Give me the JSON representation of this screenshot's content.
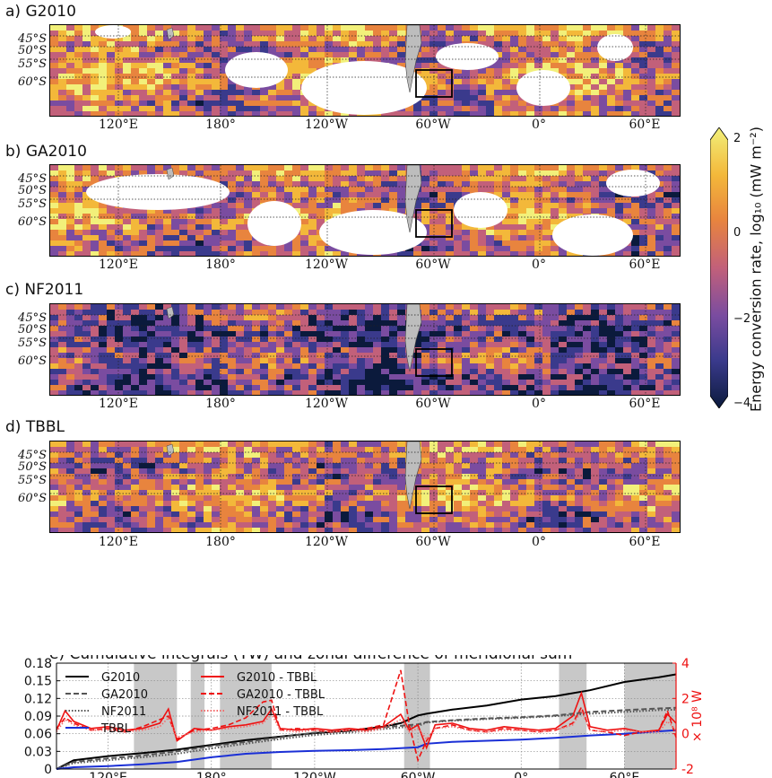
{
  "panels": [
    {
      "title": "a) G2010"
    },
    {
      "title": "b) GA2010"
    },
    {
      "title": "c) NF2011"
    },
    {
      "title": "d) TBBL"
    }
  ],
  "map_lat_labels": [
    "45°S",
    "50°S",
    "55°S",
    "60°S"
  ],
  "map_lon_labels": [
    "120°E",
    "180°",
    "120°W",
    "60°W",
    "0°",
    "60°E"
  ],
  "colorbar": {
    "label": "Energy conversion rate, log₁₀ (mW m⁻²)",
    "ticks": [
      "2",
      "0",
      "−2",
      "−4"
    ],
    "range": [
      -4,
      2
    ],
    "colors": [
      "#0b1a3c",
      "#3a3a8c",
      "#7a4ca0",
      "#c2607a",
      "#e8843e",
      "#f3b83a",
      "#f2f07a"
    ]
  },
  "chart_data": {
    "type": "line",
    "title": "e) Cumulative integrals (TW) and zonal difference of meridional sum",
    "x_tick_labels": [
      "120°E",
      "180°",
      "120°W",
      "60°W",
      "0°",
      "60°E"
    ],
    "x_ticks": [
      120,
      180,
      240,
      300,
      360,
      420
    ],
    "xlim": [
      90,
      450
    ],
    "ylim_left": [
      0,
      0.18
    ],
    "yticks_left": [
      "0",
      "0.03",
      "0.06",
      "0.09",
      "0.12",
      "0.15",
      "0.18"
    ],
    "ylim_right": [
      -2,
      4
    ],
    "yticks_right": [
      "4",
      "2",
      "0",
      "-2"
    ],
    "ylabel_right": "× 10⁸ W",
    "shaded_lon_ranges": [
      [
        135,
        160
      ],
      [
        168,
        176
      ],
      [
        185,
        215
      ],
      [
        292,
        307
      ],
      [
        382,
        398
      ],
      [
        420,
        450
      ]
    ],
    "series": [
      {
        "name": "G2010",
        "axis": "left",
        "color": "#000000",
        "style": "solid",
        "x": [
          90,
          100,
          120,
          140,
          160,
          180,
          200,
          220,
          240,
          260,
          280,
          290,
          300,
          305,
          320,
          340,
          360,
          380,
          400,
          420,
          440,
          450
        ],
        "y": [
          0,
          0.015,
          0.022,
          0.027,
          0.033,
          0.041,
          0.049,
          0.055,
          0.061,
          0.065,
          0.072,
          0.078,
          0.091,
          0.094,
          0.101,
          0.108,
          0.118,
          0.124,
          0.134,
          0.148,
          0.156,
          0.161
        ]
      },
      {
        "name": "GA2010",
        "axis": "left",
        "color": "#555555",
        "style": "dashed",
        "x": [
          90,
          100,
          120,
          140,
          160,
          180,
          200,
          220,
          240,
          260,
          280,
          300,
          305,
          320,
          340,
          360,
          380,
          400,
          420,
          440,
          450
        ],
        "y": [
          0,
          0.012,
          0.018,
          0.023,
          0.03,
          0.039,
          0.046,
          0.054,
          0.062,
          0.066,
          0.071,
          0.076,
          0.08,
          0.083,
          0.086,
          0.088,
          0.091,
          0.097,
          0.1,
          0.103,
          0.104
        ]
      },
      {
        "name": "NF2011",
        "axis": "left",
        "color": "#555555",
        "style": "dotted",
        "x": [
          90,
          100,
          120,
          140,
          160,
          180,
          200,
          220,
          240,
          260,
          280,
          300,
          305,
          320,
          340,
          360,
          380,
          400,
          420,
          440,
          450
        ],
        "y": [
          0,
          0.01,
          0.015,
          0.02,
          0.026,
          0.035,
          0.043,
          0.051,
          0.058,
          0.062,
          0.068,
          0.073,
          0.079,
          0.082,
          0.085,
          0.087,
          0.09,
          0.094,
          0.097,
          0.1,
          0.101
        ]
      },
      {
        "name": "TBBL",
        "axis": "left",
        "color": "#1a2fd6",
        "style": "solid",
        "x": [
          90,
          100,
          120,
          140,
          160,
          180,
          200,
          220,
          240,
          260,
          280,
          300,
          305,
          320,
          340,
          360,
          380,
          400,
          420,
          440,
          450
        ],
        "y": [
          0,
          0.003,
          0.005,
          0.008,
          0.012,
          0.02,
          0.026,
          0.029,
          0.031,
          0.032,
          0.034,
          0.037,
          0.043,
          0.046,
          0.048,
          0.05,
          0.053,
          0.057,
          0.06,
          0.064,
          0.066
        ]
      },
      {
        "name": "G2010 - TBBL",
        "axis": "right",
        "color": "#ee1111",
        "style": "solid",
        "x": [
          90,
          95,
          100,
          110,
          120,
          130,
          140,
          150,
          155,
          160,
          170,
          180,
          190,
          200,
          210,
          215,
          220,
          230,
          240,
          250,
          260,
          270,
          280,
          290,
          295,
          300,
          305,
          310,
          320,
          330,
          340,
          350,
          360,
          370,
          380,
          390,
          395,
          400,
          410,
          420,
          430,
          440,
          445,
          450
        ],
        "y": [
          0.2,
          1.3,
          0.7,
          0.3,
          0.4,
          0.2,
          0.3,
          0.6,
          1.4,
          -0.4,
          0.3,
          0.2,
          0.4,
          0.5,
          0.7,
          1.4,
          0.3,
          0.2,
          0.3,
          0.2,
          0.3,
          0.2,
          0.4,
          1.1,
          0.2,
          0.5,
          -0.8,
          0.5,
          0.6,
          0.3,
          0.2,
          0.4,
          0.3,
          0.2,
          0.3,
          1.0,
          2.3,
          0.4,
          0.2,
          0.3,
          0.1,
          0.2,
          1.1,
          0.6
        ]
      },
      {
        "name": "GA2010 - TBBL",
        "axis": "right",
        "color": "#ee1111",
        "style": "dashed",
        "x": [
          90,
          95,
          100,
          110,
          120,
          130,
          140,
          150,
          155,
          160,
          170,
          180,
          190,
          200,
          210,
          215,
          220,
          230,
          240,
          250,
          260,
          270,
          280,
          290,
          295,
          300,
          305,
          310,
          320,
          330,
          340,
          350,
          360,
          370,
          380,
          390,
          395,
          400,
          410,
          420,
          430,
          440,
          445,
          450
        ],
        "y": [
          0.3,
          0.9,
          0.6,
          0.2,
          0.3,
          0.1,
          0.4,
          0.8,
          1.0,
          -0.3,
          0.2,
          0.3,
          0.5,
          0.9,
          1.8,
          1.9,
          0.2,
          0.3,
          0.2,
          0.1,
          0.2,
          0.3,
          0.5,
          3.6,
          0.5,
          -1.5,
          -0.4,
          0.3,
          0.5,
          0.2,
          0.1,
          0.3,
          0.2,
          0.1,
          0.2,
          0.6,
          1.5,
          0.2,
          0.1,
          -0.1,
          0.1,
          0.2,
          1.3,
          -0.2
        ]
      },
      {
        "name": "NF2011 - TBBL",
        "axis": "right",
        "color": "#f36a6a",
        "style": "dotted",
        "x": [
          90,
          95,
          100,
          110,
          120,
          130,
          140,
          150,
          155,
          160,
          170,
          180,
          190,
          200,
          210,
          215,
          220,
          230,
          240,
          250,
          260,
          270,
          280,
          290,
          295,
          300,
          305,
          310,
          320,
          330,
          340,
          350,
          360,
          370,
          380,
          390,
          395,
          400,
          410,
          420,
          430,
          440,
          445,
          450
        ],
        "y": [
          0.1,
          0.8,
          0.5,
          0.2,
          0.2,
          0.1,
          0.2,
          0.4,
          0.9,
          -0.2,
          0.1,
          0.2,
          0.3,
          0.4,
          0.6,
          1.1,
          0.2,
          0.1,
          0.2,
          0.1,
          0.2,
          0.1,
          0.3,
          0.8,
          0.1,
          0.3,
          -0.3,
          0.3,
          0.4,
          0.2,
          0.1,
          0.2,
          0.2,
          0.1,
          0.2,
          0.5,
          1.3,
          0.2,
          0.1,
          0.2,
          0.1,
          0.1,
          0.7,
          0.2
        ]
      }
    ]
  }
}
